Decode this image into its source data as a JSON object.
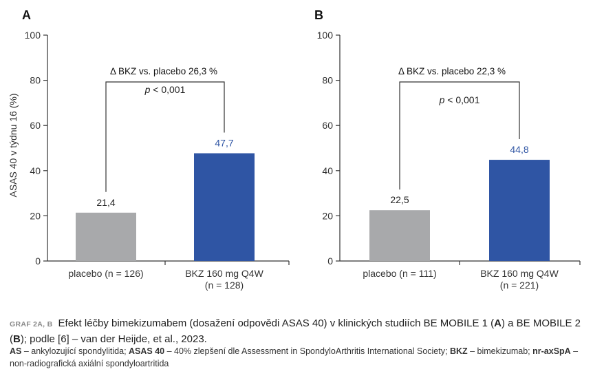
{
  "chart_data": [
    {
      "type": "bar",
      "panel": "A",
      "ylabel": "ASAS 40 v týdnu 16 (%)",
      "ylim": [
        0,
        100
      ],
      "yticks": [
        0,
        20,
        40,
        60,
        80,
        100
      ],
      "categories": [
        [
          "placebo (n = 126)"
        ],
        [
          "BKZ 160 mg Q4W",
          "(n = 128)"
        ]
      ],
      "values": [
        21.4,
        47.7
      ],
      "value_labels": [
        "21,4",
        "47,7"
      ],
      "colors": [
        "#a8a9ab",
        "#2f55a4"
      ],
      "value_label_colors": [
        "#222222",
        "#2f55a4"
      ],
      "annotation": {
        "delta": "Δ BKZ vs. placebo 26,3 %",
        "p_symbol": "p",
        "p_value": "< 0,001"
      }
    },
    {
      "type": "bar",
      "panel": "B",
      "ylabel": "",
      "ylim": [
        0,
        100
      ],
      "yticks": [
        0,
        20,
        40,
        60,
        80,
        100
      ],
      "categories": [
        [
          "placebo (n = 111)"
        ],
        [
          "BKZ 160 mg Q4W",
          "(n = 221)"
        ]
      ],
      "values": [
        22.5,
        44.8
      ],
      "value_labels": [
        "22,5",
        "44,8"
      ],
      "colors": [
        "#a8a9ab",
        "#2f55a4"
      ],
      "value_label_colors": [
        "#222222",
        "#2f55a4"
      ],
      "annotation": {
        "delta": "Δ BKZ vs. placebo 22,3 %",
        "p_symbol": "p",
        "p_value": "< 0,001"
      }
    }
  ],
  "caption": {
    "label": "GRAF 2A, B",
    "text_1": "Efekt léčby bimekizumabem (dosažení odpovědi ASAS 40) v klinických studiích BE MOBILE 1 (",
    "bold_a": "A",
    "text_2": ") a BE MOBILE 2 (",
    "bold_b": "B",
    "text_3": "); podle [6] – van der Heijde, et al., 2023."
  },
  "abbreviations": {
    "as_term": "AS",
    "as_def": " – ankylozující spondylitida; ",
    "asas_term": "ASAS 40",
    "asas_def": " – 40% zlepšení dle Assessment in SpondyloArthritis International Society; ",
    "bkz_term": "BKZ",
    "bkz_def": " – bimekizumab; ",
    "nr_term": "nr-axSpA",
    "nr_def": " – non-radiografická axiální spondyloartritida"
  }
}
